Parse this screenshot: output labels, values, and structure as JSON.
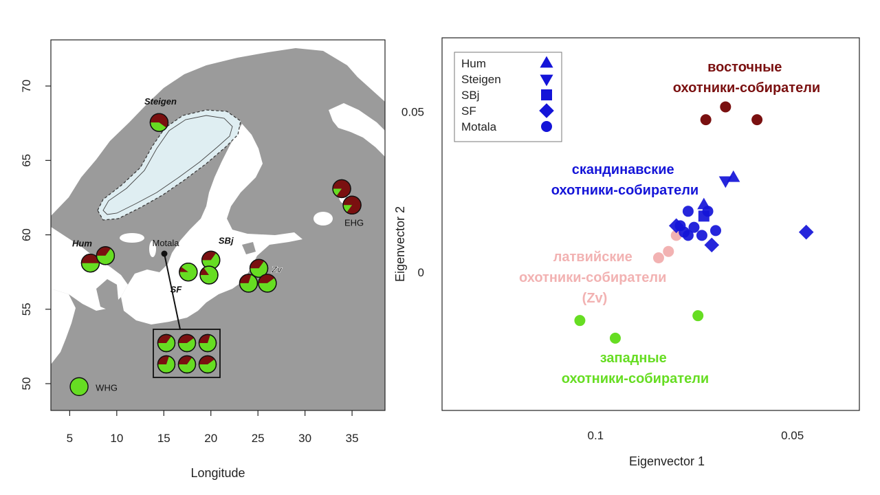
{
  "chart_data": [
    {
      "type": "map",
      "xlabel": "Longitude",
      "ylabel": "",
      "xlim": [
        3,
        38.5
      ],
      "ylim": [
        48.2,
        73.1
      ],
      "xticks": [
        5,
        10,
        15,
        20,
        25,
        30,
        35
      ],
      "yticks": [
        50,
        55,
        60,
        65,
        70
      ],
      "colors": {
        "sea": "#ffffff",
        "land": "#9b9b9b",
        "ice": "#dfeef2",
        "ancestry_west": "#66dd22",
        "ancestry_east": "#7a1010"
      },
      "sites": [
        {
          "label": "Steigen",
          "italic": true,
          "lon": 14.5,
          "lat": 67.55,
          "east_fraction": 0.6
        },
        {
          "label": "Hum",
          "italic": true,
          "lon": 7.2,
          "lat": 58.1,
          "east_fraction": 0.5
        },
        {
          "label": "",
          "lon": 8.8,
          "lat": 58.6,
          "east_fraction": 0.35
        },
        {
          "label": "SBj",
          "italic": true,
          "lon": 20.0,
          "lat": 58.3,
          "east_fraction": 0.35
        },
        {
          "label": "SF",
          "italic": true,
          "lon": 17.6,
          "lat": 57.5,
          "east_fraction": 0.1
        },
        {
          "label": "",
          "lon": 19.8,
          "lat": 57.3,
          "east_fraction": 0.15
        },
        {
          "label": "Zv",
          "italic": true,
          "lon": 25.1,
          "lat": 57.75,
          "east_fraction": 0.35
        },
        {
          "label": "",
          "lon": 24.0,
          "lat": 56.75,
          "east_fraction": 0.3
        },
        {
          "label": "",
          "lon": 26.0,
          "lat": 56.75,
          "east_fraction": 0.4
        },
        {
          "label": "",
          "lon": 33.9,
          "lat": 63.1,
          "east_fraction": 0.85
        },
        {
          "label": "EHG",
          "italic": false,
          "lon": 35.0,
          "lat": 62.0,
          "east_fraction": 0.85
        },
        {
          "label": "WHG",
          "italic": false,
          "lon": 6.0,
          "lat": 49.8,
          "east_fraction": 0.0
        }
      ],
      "motala": {
        "label": "Motala",
        "lon": 15.0,
        "lat": 58.5,
        "east_fractions": [
          0.35,
          0.4,
          0.3,
          0.3,
          0.35,
          0.4
        ]
      }
    },
    {
      "type": "scatter",
      "xlabel": "Eigenvector 1",
      "ylabel": "Eigenvector 2",
      "xticks": [
        {
          "value": 0.1,
          "label": "0.1"
        },
        {
          "value": 0.05,
          "label": "0.05"
        }
      ],
      "yticks": [
        {
          "value": 0,
          "label": "0"
        },
        {
          "value": 0.05,
          "label": "0.05"
        }
      ],
      "xlim": [
        0.139,
        0.033
      ],
      "ylim": [
        -0.043,
        0.073
      ],
      "legend": {
        "position": "top-left",
        "entries": [
          {
            "label": "Hum",
            "shape": "triangle"
          },
          {
            "label": "Steigen",
            "shape": "triangle-down"
          },
          {
            "label": "SBj",
            "shape": "square"
          },
          {
            "label": "SF",
            "shape": "diamond"
          },
          {
            "label": "Motala",
            "shape": "circle"
          }
        ]
      },
      "series": [
        {
          "color": "#7a1010",
          "shape": "circle",
          "points": [
            [
              0.072,
              0.0475
            ],
            [
              0.067,
              0.0515
            ],
            [
              0.059,
              0.0475
            ]
          ]
        },
        {
          "color": "#66dd22",
          "shape": "circle",
          "points": [
            [
              0.104,
              -0.015
            ],
            [
              0.095,
              -0.0205
            ],
            [
              0.074,
              -0.0135
            ]
          ]
        },
        {
          "color": "#f2b2b2",
          "shape": "circle",
          "points": [
            [
              0.084,
              0.0045
            ],
            [
              0.0815,
              0.0065
            ],
            [
              0.0795,
              0.0115
            ]
          ]
        },
        {
          "color": "#1414d8",
          "shape": "circle",
          "points": [
            [
              0.0785,
              0.0145
            ],
            [
              0.0765,
              0.0115
            ],
            [
              0.075,
              0.014
            ],
            [
              0.073,
              0.0115
            ],
            [
              0.0775,
              0.0125
            ],
            [
              0.0695,
              0.013
            ],
            [
              0.0715,
              0.019
            ],
            [
              0.0765,
              0.019
            ]
          ]
        },
        {
          "color": "#1414d8",
          "shape": "diamond",
          "points": [
            [
              0.0795,
              0.0145
            ],
            [
              0.0705,
              0.0085
            ],
            [
              0.0465,
              0.0125
            ]
          ]
        },
        {
          "color": "#1414d8",
          "shape": "square",
          "points": [
            [
              0.0725,
              0.0175
            ]
          ]
        },
        {
          "color": "#1414d8",
          "shape": "triangle",
          "points": [
            [
              0.0725,
              0.021
            ],
            [
              0.065,
              0.0295
            ]
          ]
        },
        {
          "color": "#1414d8",
          "shape": "triangle-down",
          "points": [
            [
              0.067,
              0.0285
            ]
          ]
        }
      ],
      "annotations": [
        {
          "lines": [
            "восточные",
            "охотники-собиратели"
          ],
          "color": "#7a1010"
        },
        {
          "lines": [
            "скандинавские",
            "охотники-собиратели"
          ],
          "color": "#1414d8"
        },
        {
          "lines": [
            "латвийские",
            "охотники-собиратели",
            "(Zv)"
          ],
          "color": "#f2b2b2"
        },
        {
          "lines": [
            "западные",
            "охотники-собиратели"
          ],
          "color": "#66dd22"
        }
      ]
    }
  ]
}
